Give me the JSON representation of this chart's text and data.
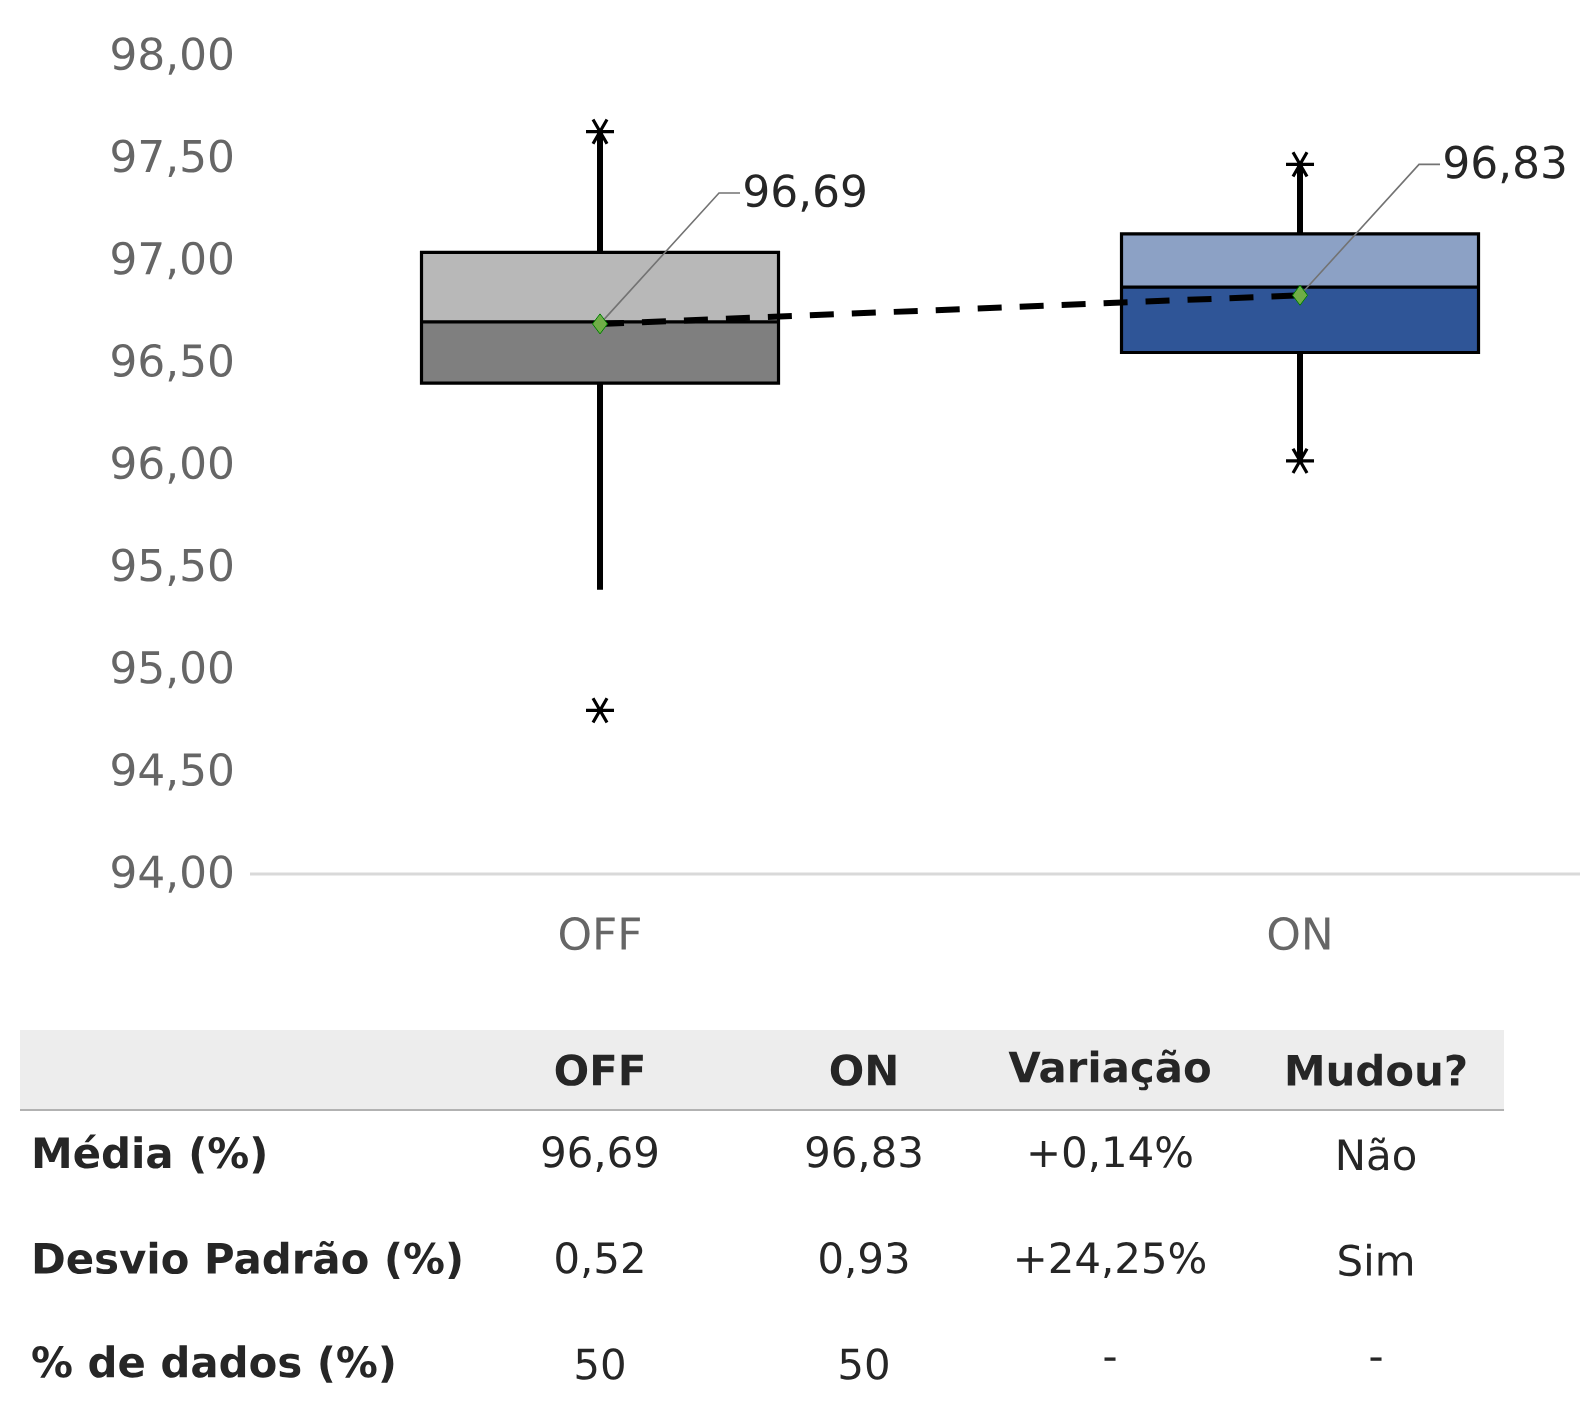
{
  "chart_data": [
    {
      "type": "box",
      "categories": [
        "OFF",
        "ON"
      ],
      "boxes": [
        {
          "low": 95.39,
          "q1": 96.4,
          "median": 96.7,
          "q3": 97.04,
          "high": 97.63,
          "outliers": [
            94.8
          ]
        },
        {
          "low": 96.02,
          "q1": 96.55,
          "median": 96.87,
          "q3": 97.13,
          "high": 97.47
        }
      ],
      "colors": [
        "#7f7f7f",
        "#2f5597"
      ],
      "series": [
        {
          "type": "scatter",
          "x": [
            "OFF",
            "ON",
            "ON"
          ],
          "values": [
            97.63,
            97.47,
            96.02
          ],
          "color": "#000000",
          "marker": "cross"
        },
        {
          "type": "line",
          "values": [
            96.69,
            96.83
          ],
          "color": "#000000",
          "line_style": "dashed",
          "marker": "diamond"
        }
      ],
      "ylim": [
        94,
        98
      ],
      "yticks": [
        {
          "value": 94,
          "label": "94,00"
        },
        {
          "value": 94.5,
          "label": "94,50"
        },
        {
          "value": 95,
          "label": "95,00"
        },
        {
          "value": 95.5,
          "label": "95,50"
        },
        {
          "value": 96,
          "label": "96,00"
        },
        {
          "value": 96.5,
          "label": "96,50"
        },
        {
          "value": 97,
          "label": "97,00"
        },
        {
          "value": 97.5,
          "label": "97,50"
        },
        {
          "value": 98,
          "label": "98,00"
        }
      ],
      "annotations": [
        {
          "text": "96,69",
          "x": "OFF",
          "y": 96.69
        },
        {
          "text": "96,83",
          "x": "ON",
          "y": 96.83
        }
      ]
    },
    {
      "type": "other",
      "categories": [
        "OFF",
        "ON",
        "Variação",
        "Mudou?"
      ],
      "y_categories": [
        "Média (%)",
        "Desvio Padrão (%)",
        "% de dados (%)"
      ],
      "cell_labels": [
        [
          "96,69",
          "96,83",
          "+0,14%",
          "Não"
        ],
        [
          "0,52",
          "0,93",
          "+24,25%",
          "Sim"
        ],
        [
          "50",
          "50",
          "-",
          "-"
        ]
      ]
    }
  ]
}
